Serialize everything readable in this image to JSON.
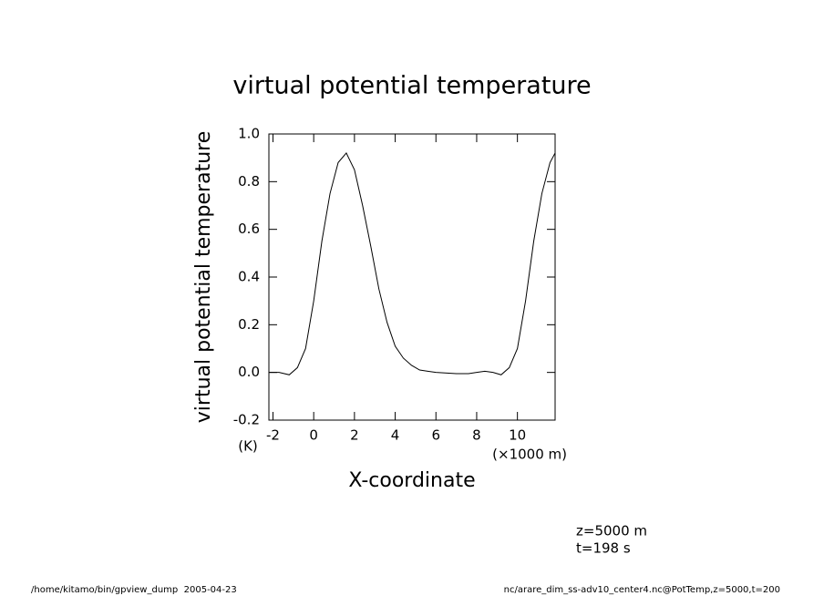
{
  "chart_data": {
    "type": "line",
    "title": "virtual potential temperature",
    "y_label": "virtual potential temperature",
    "y_unit": "(K)",
    "x_label": "X-coordinate",
    "x_unit": "(×1000 m)",
    "annotations": [
      "z=5000 m",
      "t=198 s"
    ],
    "footer_left": "/home/kitamo/bin/gpview_dump  2005-04-23",
    "footer_right": "nc/arare_dim_ss-adv10_center4.nc@PotTemp,z=5000,t=200",
    "x": [
      -2.2,
      -1.7,
      -1.2,
      -0.8,
      -0.4,
      0,
      0.4,
      0.8,
      1.2,
      1.6,
      2.0,
      2.4,
      2.8,
      3.2,
      3.6,
      4.0,
      4.4,
      4.8,
      5.2,
      5.6,
      6.0,
      7.0,
      7.6,
      8.0,
      8.4,
      8.8,
      9.2,
      9.6,
      10.0,
      10.4,
      10.8,
      11.2,
      11.6,
      11.85
    ],
    "series": [
      {
        "name": "virtual potential temperature",
        "color": "#000000",
        "values": [
          0,
          0,
          -0.01,
          0.02,
          0.1,
          0.3,
          0.55,
          0.75,
          0.88,
          0.92,
          0.85,
          0.7,
          0.53,
          0.35,
          0.21,
          0.11,
          0.06,
          0.03,
          0.01,
          0.005,
          0,
          -0.005,
          -0.005,
          0,
          0.005,
          0,
          -0.01,
          0.02,
          0.1,
          0.3,
          0.55,
          0.75,
          0.88,
          0.92
        ]
      }
    ],
    "xlim": [
      -2.2,
      11.85
    ],
    "ylim": [
      -0.2,
      1.0
    ],
    "xticks": [
      -2,
      0,
      2,
      4,
      6,
      8,
      10
    ],
    "yticks": [
      -0.2,
      {
        "value": 0,
        "label": "0.0"
      },
      0.2,
      0.4,
      0.6,
      0.8,
      {
        "value": 1,
        "label": "1.0"
      }
    ]
  }
}
